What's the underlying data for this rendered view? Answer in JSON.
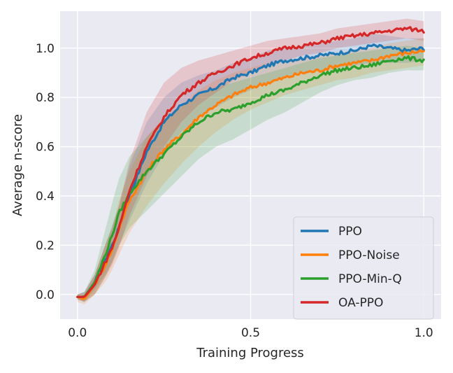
{
  "chart_data": {
    "type": "line",
    "title": "",
    "xlabel": "Training Progress",
    "ylabel": "Average n-score",
    "xlim": [
      -0.05,
      1.05
    ],
    "ylim": [
      -0.1,
      1.15
    ],
    "xticks": [
      0.0,
      0.5,
      1.0
    ],
    "xtick_labels": [
      "0.0",
      "0.5",
      "1.0"
    ],
    "yticks": [
      0.0,
      0.2,
      0.4,
      0.6,
      0.8,
      1.0
    ],
    "ytick_labels": [
      "0.0",
      "0.2",
      "0.4",
      "0.6",
      "0.8",
      "1.0"
    ],
    "grid": true,
    "legend_position": "bottom-right",
    "x": [
      0.0,
      0.02,
      0.05,
      0.08,
      0.1,
      0.12,
      0.15,
      0.2,
      0.25,
      0.3,
      0.35,
      0.4,
      0.45,
      0.5,
      0.55,
      0.6,
      0.65,
      0.7,
      0.75,
      0.8,
      0.85,
      0.9,
      0.95,
      1.0
    ],
    "series": [
      {
        "name": "PPO",
        "color": "#1f77b4",
        "values": [
          -0.01,
          -0.01,
          0.05,
          0.14,
          0.2,
          0.27,
          0.4,
          0.58,
          0.7,
          0.77,
          0.81,
          0.84,
          0.88,
          0.9,
          0.93,
          0.95,
          0.96,
          0.97,
          0.98,
          0.99,
          1.01,
          1.0,
          0.99,
          1.0
        ],
        "lower": [
          -0.02,
          -0.03,
          0.02,
          0.08,
          0.13,
          0.2,
          0.3,
          0.45,
          0.57,
          0.66,
          0.72,
          0.76,
          0.8,
          0.83,
          0.86,
          0.88,
          0.9,
          0.91,
          0.92,
          0.93,
          0.94,
          0.94,
          0.94,
          0.95
        ],
        "upper": [
          0.0,
          0.01,
          0.08,
          0.2,
          0.28,
          0.36,
          0.52,
          0.7,
          0.8,
          0.86,
          0.89,
          0.91,
          0.94,
          0.96,
          0.99,
          1.0,
          1.01,
          1.02,
          1.03,
          1.04,
          1.06,
          1.05,
          1.04,
          1.04
        ]
      },
      {
        "name": "PPO-Noise",
        "color": "#ff7f0e",
        "values": [
          -0.01,
          -0.02,
          0.04,
          0.12,
          0.18,
          0.27,
          0.38,
          0.5,
          0.59,
          0.65,
          0.72,
          0.77,
          0.81,
          0.84,
          0.86,
          0.88,
          0.9,
          0.91,
          0.93,
          0.94,
          0.95,
          0.97,
          0.98,
          0.99
        ],
        "lower": [
          -0.03,
          -0.04,
          0.0,
          0.05,
          0.1,
          0.16,
          0.25,
          0.36,
          0.45,
          0.53,
          0.6,
          0.66,
          0.71,
          0.75,
          0.78,
          0.81,
          0.83,
          0.85,
          0.87,
          0.88,
          0.9,
          0.91,
          0.92,
          0.93
        ],
        "upper": [
          0.0,
          0.0,
          0.08,
          0.2,
          0.27,
          0.38,
          0.5,
          0.64,
          0.72,
          0.77,
          0.83,
          0.87,
          0.9,
          0.92,
          0.94,
          0.95,
          0.96,
          0.97,
          0.98,
          0.99,
          1.0,
          1.02,
          1.03,
          1.04
        ]
      },
      {
        "name": "PPO-Min-Q",
        "color": "#2ca02c",
        "values": [
          -0.01,
          -0.01,
          0.05,
          0.16,
          0.24,
          0.33,
          0.41,
          0.5,
          0.57,
          0.64,
          0.7,
          0.74,
          0.75,
          0.78,
          0.81,
          0.83,
          0.86,
          0.89,
          0.91,
          0.92,
          0.93,
          0.95,
          0.96,
          0.95
        ],
        "lower": [
          -0.02,
          -0.03,
          0.0,
          0.07,
          0.13,
          0.2,
          0.27,
          0.34,
          0.41,
          0.48,
          0.55,
          0.6,
          0.63,
          0.67,
          0.71,
          0.74,
          0.78,
          0.82,
          0.85,
          0.87,
          0.88,
          0.9,
          0.91,
          0.91
        ],
        "upper": [
          0.0,
          0.01,
          0.1,
          0.26,
          0.37,
          0.47,
          0.56,
          0.64,
          0.71,
          0.76,
          0.81,
          0.84,
          0.86,
          0.88,
          0.9,
          0.92,
          0.94,
          0.96,
          0.97,
          0.98,
          0.99,
          1.0,
          1.01,
          1.0
        ]
      },
      {
        "name": "OA-PPO",
        "color": "#d62728",
        "values": [
          -0.01,
          -0.01,
          0.04,
          0.13,
          0.19,
          0.27,
          0.42,
          0.6,
          0.72,
          0.81,
          0.86,
          0.9,
          0.93,
          0.96,
          0.98,
          1.0,
          1.01,
          1.02,
          1.04,
          1.05,
          1.06,
          1.07,
          1.08,
          1.07
        ],
        "lower": [
          -0.02,
          -0.03,
          0.0,
          0.07,
          0.12,
          0.19,
          0.32,
          0.48,
          0.6,
          0.7,
          0.77,
          0.82,
          0.87,
          0.9,
          0.93,
          0.95,
          0.97,
          0.98,
          1.0,
          1.01,
          1.02,
          1.03,
          1.04,
          1.03
        ],
        "upper": [
          0.0,
          0.01,
          0.08,
          0.2,
          0.27,
          0.36,
          0.54,
          0.74,
          0.86,
          0.92,
          0.95,
          0.97,
          0.99,
          1.01,
          1.03,
          1.04,
          1.05,
          1.06,
          1.08,
          1.09,
          1.1,
          1.11,
          1.12,
          1.11
        ]
      }
    ]
  }
}
